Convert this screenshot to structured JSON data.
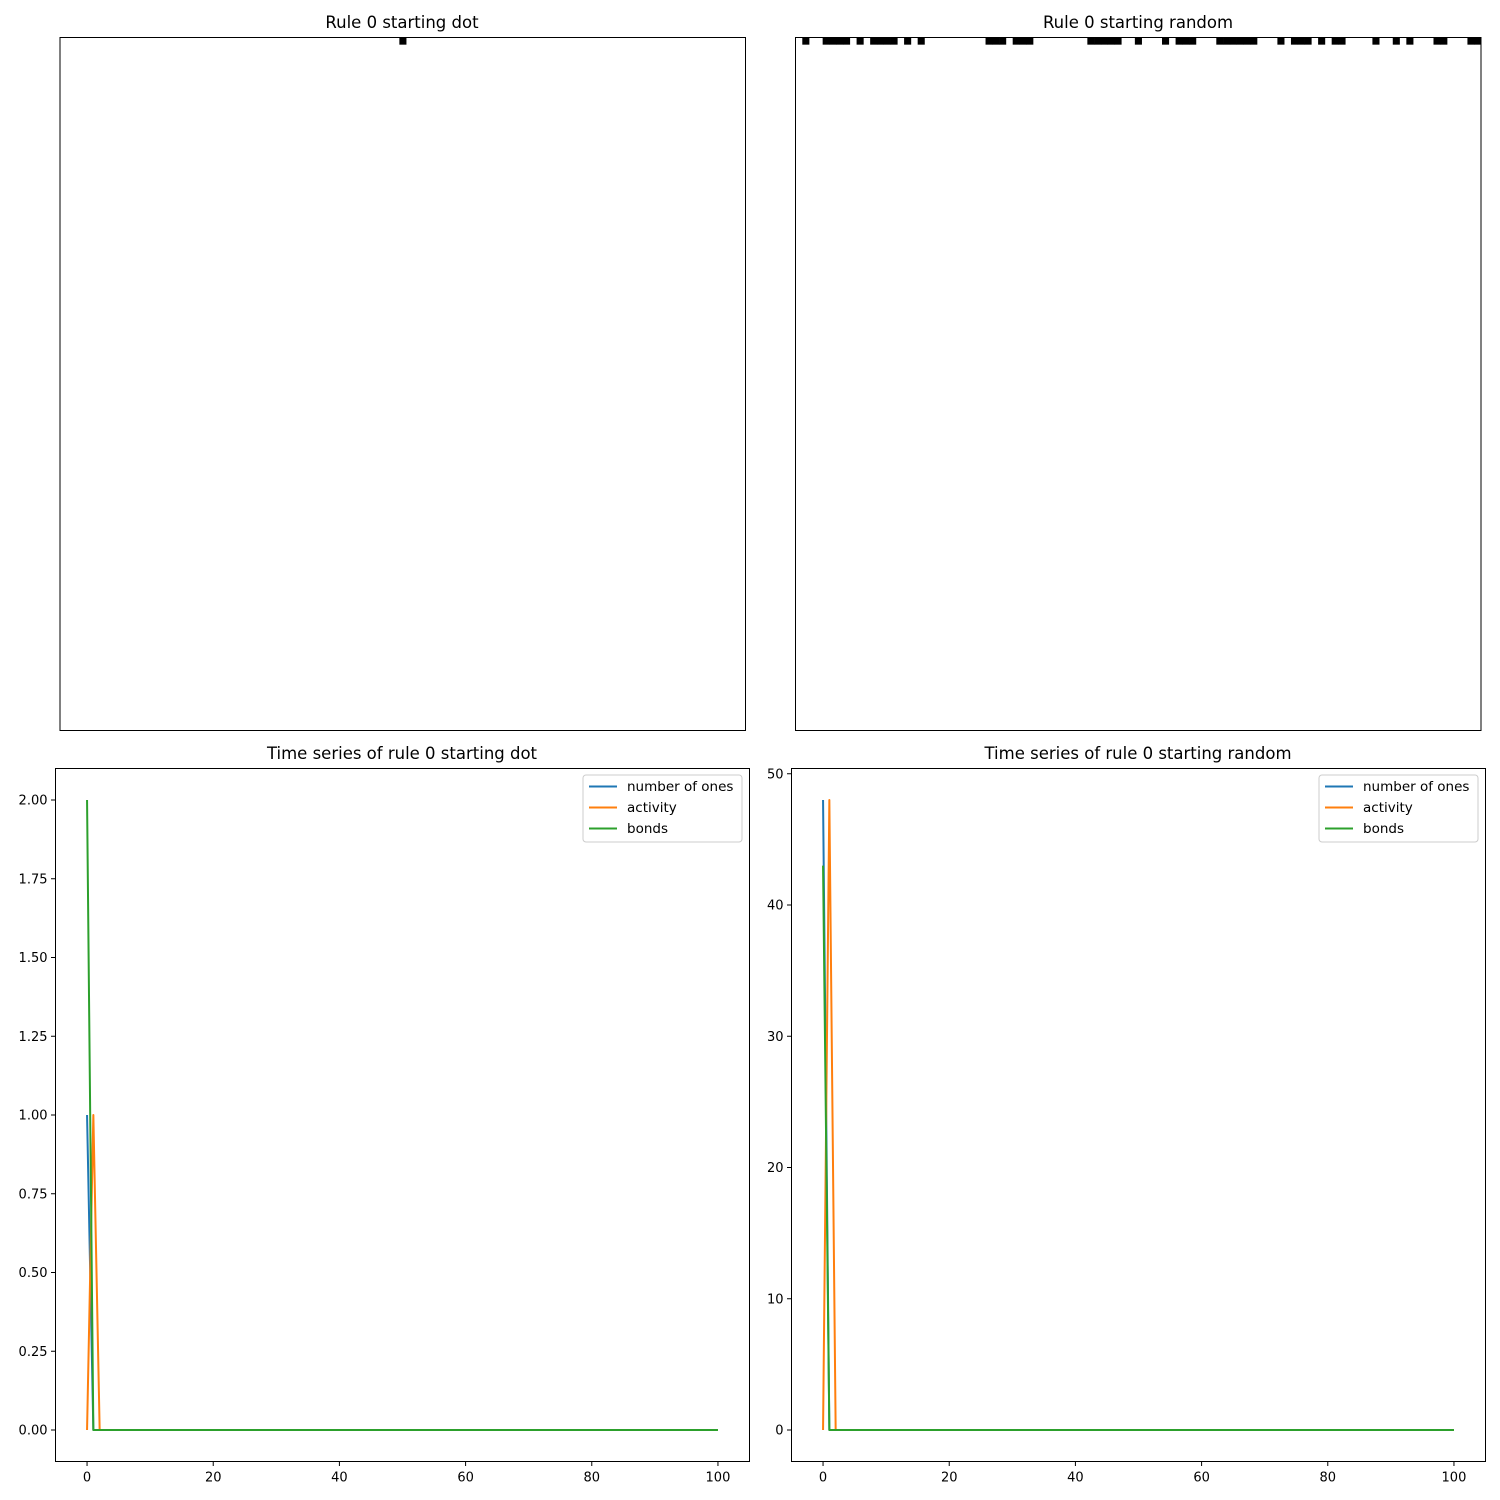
{
  "colors": {
    "number_of_ones": "#1f77b4",
    "activity": "#ff7f0e",
    "bonds": "#2ca02c",
    "cell_on": "#000000",
    "cell_off": "#ffffff"
  },
  "chart_data": [
    {
      "type": "heatmap",
      "title": "Rule 0 starting dot",
      "axes_visible": false,
      "grid_shape": [
        101,
        101
      ],
      "colormap": "binary",
      "rows": [
        {
          "row": 0,
          "on_cells": [
            50
          ]
        }
      ]
    },
    {
      "type": "heatmap",
      "title": "Rule 0 starting random",
      "axes_visible": false,
      "grid_shape": [
        101,
        101
      ],
      "colormap": "binary",
      "rows": [
        {
          "row": 0,
          "on_cells": [
            1,
            4,
            5,
            6,
            7,
            9,
            11,
            12,
            13,
            14,
            16,
            18,
            28,
            29,
            30,
            32,
            33,
            34,
            43,
            44,
            45,
            46,
            47,
            50,
            54,
            56,
            57,
            58,
            62,
            63,
            64,
            65,
            66,
            67,
            71,
            73,
            74,
            75,
            77,
            79,
            80,
            85,
            88,
            90,
            94,
            95,
            99,
            100
          ]
        }
      ]
    },
    {
      "type": "line",
      "title": "Time series of rule 0 starting dot",
      "xlim": [
        -5,
        105
      ],
      "ylim": [
        -0.1,
        2.1
      ],
      "x_ticks": [
        "0",
        "20",
        "40",
        "60",
        "80",
        "100"
      ],
      "y_ticks": [
        "0.00",
        "0.25",
        "0.50",
        "0.75",
        "1.00",
        "1.25",
        "1.50",
        "1.75",
        "2.00"
      ],
      "legend_position": "top-right",
      "series": [
        {
          "name": "number of ones",
          "x": [
            0,
            1,
            100
          ],
          "y": [
            1,
            0,
            0
          ]
        },
        {
          "name": "activity",
          "x": [
            0,
            1,
            2,
            100
          ],
          "y": [
            0,
            1,
            0,
            0
          ]
        },
        {
          "name": "bonds",
          "x": [
            0,
            1,
            100
          ],
          "y": [
            2,
            0,
            0
          ]
        }
      ]
    },
    {
      "type": "line",
      "title": "Time series of rule 0 starting random",
      "xlim": [
        -5,
        105
      ],
      "ylim": [
        -2.4,
        50.4
      ],
      "x_ticks": [
        "0",
        "20",
        "40",
        "60",
        "80",
        "100"
      ],
      "y_ticks": [
        "0",
        "10",
        "20",
        "30",
        "40",
        "50"
      ],
      "legend_position": "top-right",
      "series": [
        {
          "name": "number of ones",
          "x": [
            0,
            1,
            100
          ],
          "y": [
            48,
            0,
            0
          ]
        },
        {
          "name": "activity",
          "x": [
            0,
            1,
            2,
            100
          ],
          "y": [
            0,
            48,
            0,
            0
          ]
        },
        {
          "name": "bonds",
          "x": [
            0,
            1,
            100
          ],
          "y": [
            43,
            0,
            0
          ]
        }
      ]
    }
  ]
}
